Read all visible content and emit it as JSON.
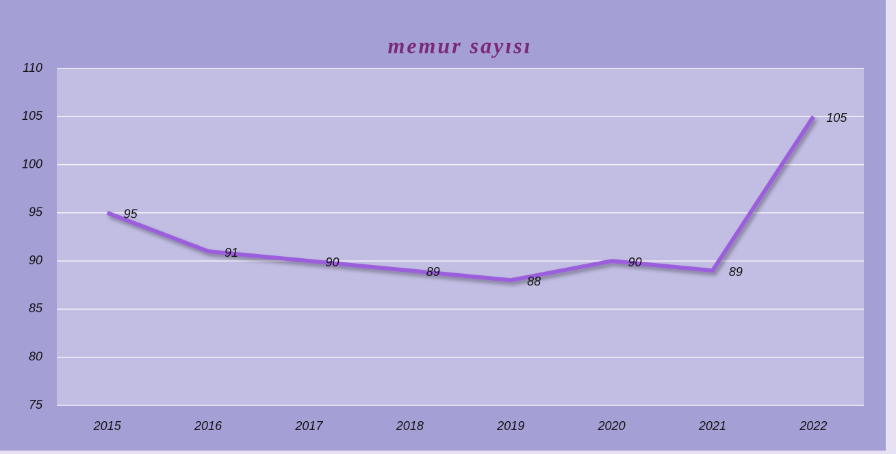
{
  "chart_data": {
    "type": "line",
    "title": "memur sayısı",
    "categories": [
      "2015",
      "2016",
      "2017",
      "2018",
      "2019",
      "2020",
      "2021",
      "2022"
    ],
    "series": [
      {
        "name": "memur sayısı",
        "color": "#9b5fdc",
        "values": [
          95,
          91,
          90,
          89,
          88,
          90,
          89,
          105
        ]
      }
    ],
    "ylim": [
      75,
      110
    ],
    "yticks": [
      75,
      80,
      85,
      90,
      95,
      100,
      105,
      110
    ],
    "grid": true
  }
}
